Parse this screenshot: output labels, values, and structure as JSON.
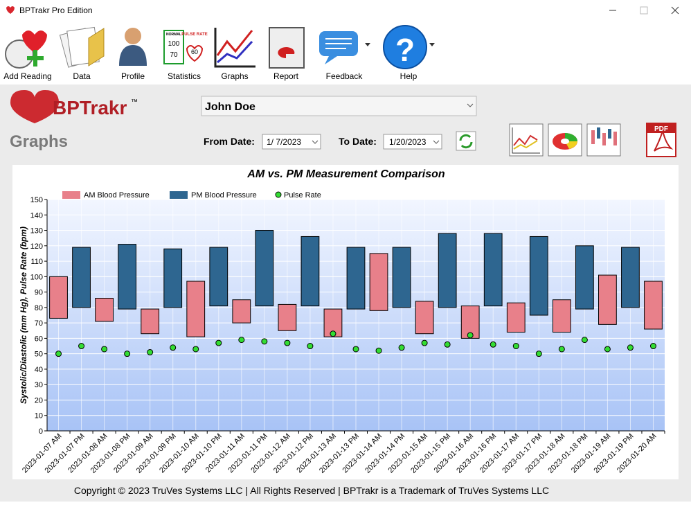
{
  "window": {
    "title": "BPTrakr Pro Edition"
  },
  "toolbar": [
    "Add Reading",
    "Data",
    "Profile",
    "Statistics",
    "Graphs",
    "Report",
    "Feedback",
    "Help"
  ],
  "statistics_icon": {
    "normal": "NORMAL",
    "pulse": "PULSE RATE",
    "systolic": "100",
    "diastolic": "70",
    "rate": "60"
  },
  "header": {
    "logo": "BPTrakr",
    "trademark": "™",
    "patient": "John Doe",
    "page_title": "Graphs",
    "from_label": "From Date:",
    "from_date": "1/ 7/2023",
    "to_label": "To Date:",
    "to_date": "1/20/2023",
    "pdf": "PDF"
  },
  "chart_data": {
    "type": "floating-bar",
    "title": "AM vs. PM Measurement Comparison",
    "y_label": "Systolic/Diastolic (mm Hg), Pulse Rate (bpm)",
    "categories": [
      "2023-01-07 AM",
      "2023-01-07 PM",
      "2023-01-08 AM",
      "2023-01-08 PM",
      "2023-01-09 AM",
      "2023-01-09 PM",
      "2023-01-10 AM",
      "2023-01-10 PM",
      "2023-01-11 AM",
      "2023-01-11 PM",
      "2023-01-12 AM",
      "2023-01-12 PM",
      "2023-01-13 AM",
      "2023-01-13 PM",
      "2023-01-14 AM",
      "2023-01-14 PM",
      "2023-01-15 AM",
      "2023-01-15 PM",
      "2023-01-16 AM",
      "2023-01-16 PM",
      "2023-01-17 AM",
      "2023-01-17 PM",
      "2023-01-18 AM",
      "2023-01-18 PM",
      "2023-01-19 AM",
      "2023-01-19 PM",
      "2023-01-20 AM"
    ],
    "series": [
      {
        "name": "AM Blood Pressure",
        "color": "#e8808a",
        "high": [
          100,
          null,
          86,
          null,
          79,
          null,
          97,
          null,
          85,
          null,
          82,
          null,
          79,
          null,
          115,
          null,
          84,
          null,
          81,
          null,
          83,
          null,
          85,
          null,
          101,
          null,
          97
        ],
        "low": [
          73,
          null,
          71,
          null,
          63,
          null,
          61,
          null,
          70,
          null,
          65,
          null,
          61,
          null,
          78,
          null,
          63,
          null,
          60,
          null,
          64,
          null,
          64,
          null,
          69,
          null,
          66
        ]
      },
      {
        "name": "PM Blood Pressure",
        "color": "#2e6690",
        "high": [
          null,
          119,
          null,
          121,
          null,
          118,
          null,
          119,
          null,
          130,
          null,
          126,
          null,
          119,
          null,
          119,
          null,
          128,
          null,
          128,
          null,
          126,
          null,
          120,
          null,
          119,
          null
        ],
        "low": [
          null,
          80,
          null,
          79,
          null,
          80,
          null,
          81,
          null,
          81,
          null,
          81,
          null,
          79,
          null,
          80,
          null,
          80,
          null,
          81,
          null,
          75,
          null,
          79,
          null,
          80,
          null
        ]
      },
      {
        "name": "Pulse Rate",
        "color": "#33dd33",
        "type": "scatter",
        "values": [
          50,
          55,
          53,
          50,
          51,
          54,
          53,
          57,
          59,
          58,
          57,
          55,
          63,
          53,
          52,
          54,
          57,
          56,
          62,
          56,
          55,
          50,
          53,
          59,
          53,
          54,
          55
        ]
      }
    ],
    "ylim": [
      0,
      150
    ],
    "yticks": [
      0,
      10,
      20,
      30,
      40,
      50,
      60,
      70,
      80,
      90,
      100,
      110,
      120,
      130,
      140,
      150
    ],
    "grid": true,
    "legend": "top-left"
  },
  "footer": "Copyright © 2023 TruVes Systems LLC | All Rights Reserved | BPTrakr is a Trademark of TruVes Systems LLC"
}
